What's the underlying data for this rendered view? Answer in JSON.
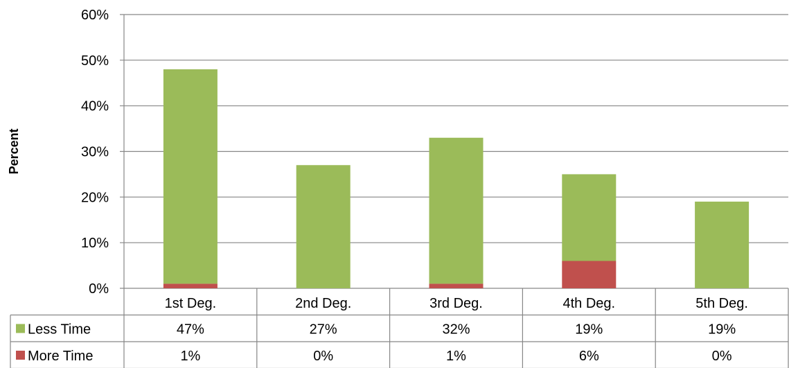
{
  "chart_data": {
    "type": "bar",
    "stacked": true,
    "ylabel": "Percent",
    "xlabel": "",
    "ylim": [
      0,
      60
    ],
    "yticks": [
      "0%",
      "10%",
      "20%",
      "30%",
      "40%",
      "50%",
      "60%"
    ],
    "grid": true,
    "legend_placement": "data-table-left",
    "categories": [
      "1st Deg.",
      "2nd Deg.",
      "3rd Deg.",
      "4th Deg.",
      "5th Deg."
    ],
    "series": [
      {
        "name": "More Time",
        "color": "#c0504d",
        "values": [
          1,
          0,
          1,
          6,
          0
        ],
        "labels": [
          "1%",
          "0%",
          "1%",
          "6%",
          "0%"
        ]
      },
      {
        "name": "Less Time",
        "color": "#9bbb59",
        "values": [
          47,
          27,
          32,
          19,
          19
        ],
        "labels": [
          "47%",
          "27%",
          "32%",
          "19%",
          "19%"
        ]
      }
    ],
    "table_rows": [
      "Less Time",
      "More Time"
    ]
  }
}
